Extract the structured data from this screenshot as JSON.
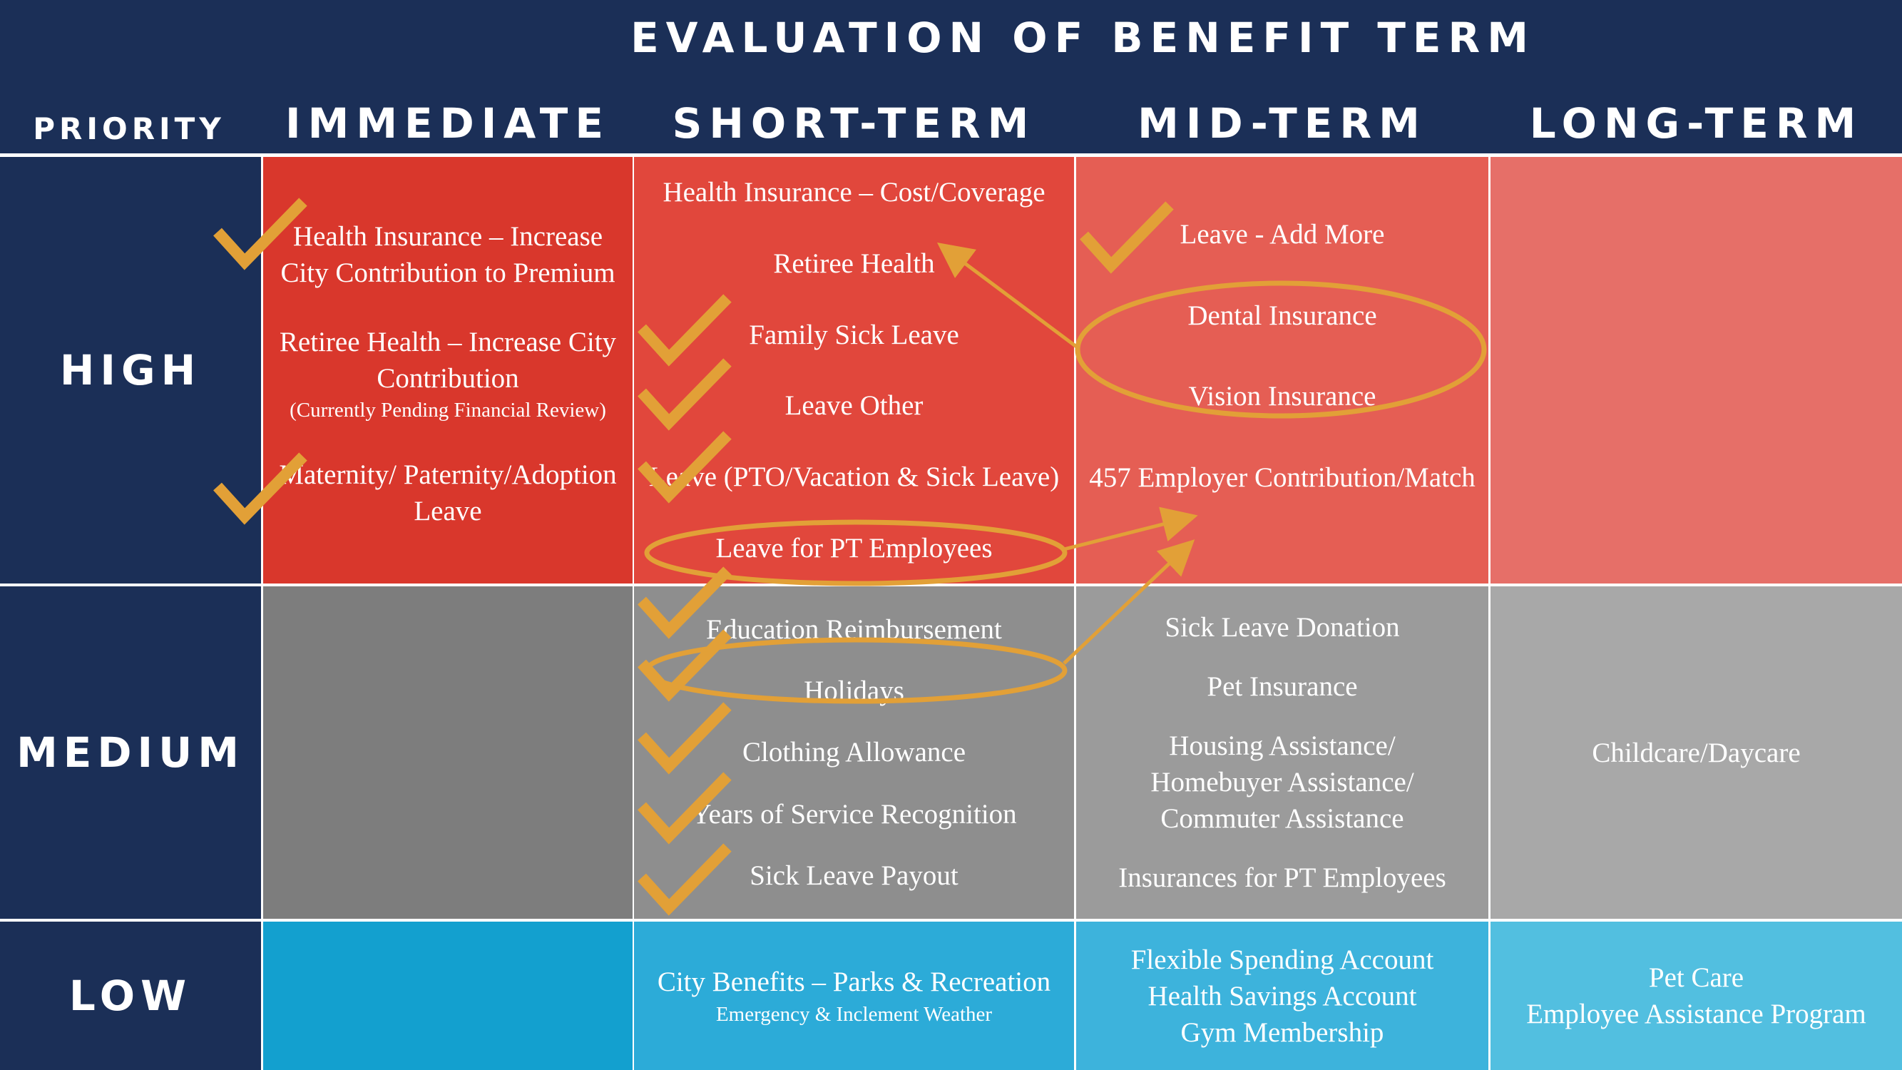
{
  "title": "EVALUATION OF BENEFIT TERM",
  "priority_header": "PRIORITY",
  "columns": [
    "IMMEDIATE",
    "SHORT-TERM",
    "MID-TERM",
    "LONG-TERM"
  ],
  "rows": [
    "HIGH",
    "MEDIUM",
    "LOW"
  ],
  "colors": {
    "navy": "#1b2f57",
    "high": [
      "#d9372c",
      "#e1473c",
      "#e55e54",
      "#e66f68"
    ],
    "medium": [
      "#7d7d7d",
      "#8e8e8e",
      "#9b9b9b",
      "#a8a8a8"
    ],
    "low": [
      "#13a0cf",
      "#2cabd8",
      "#3db3dc",
      "#52bfe0"
    ],
    "annotation": "#e2a037"
  },
  "cells": {
    "high_immediate": {
      "items": [
        "Health Insurance – Increase City Contribution to Premium",
        "Retiree Health – Increase City Contribution"
      ],
      "note": "(Currently Pending Financial Review)",
      "last": "Maternity/ Paternity/Adoption Leave"
    },
    "high_short": [
      "Health Insurance – Cost/Coverage",
      "Retiree Health",
      "Family Sick Leave",
      "Leave Other",
      "Leave (PTO/Vacation & Sick Leave)",
      "Leave for PT Employees"
    ],
    "high_mid": [
      "Leave - Add More",
      "Dental Insurance",
      "Vision Insurance",
      "457 Employer Contribution/Match"
    ],
    "medium_short": [
      "Education Reimbursement",
      "Holidays",
      "Clothing Allowance",
      "Years of Service Recognition",
      "Sick Leave Payout"
    ],
    "medium_mid": [
      "Sick Leave Donation",
      "Pet Insurance",
      "Housing Assistance/ Homebuyer Assistance/ Commuter Assistance",
      "Insurances for PT Employees"
    ],
    "medium_long": "Childcare/Daycare",
    "low_short": {
      "main": "City Benefits – Parks & Recreation",
      "sub": "Emergency & Inclement Weather"
    },
    "low_mid": [
      "Flexible Spending Account",
      "Health Savings Account",
      "Gym Membership"
    ],
    "low_long": [
      "Pet Care",
      "Employee Assistance Program"
    ]
  },
  "annotations": {
    "check_icon": "checkmark-icon",
    "circle_icon": "ellipse-highlight",
    "arrow_icon": "arrow-icon"
  }
}
